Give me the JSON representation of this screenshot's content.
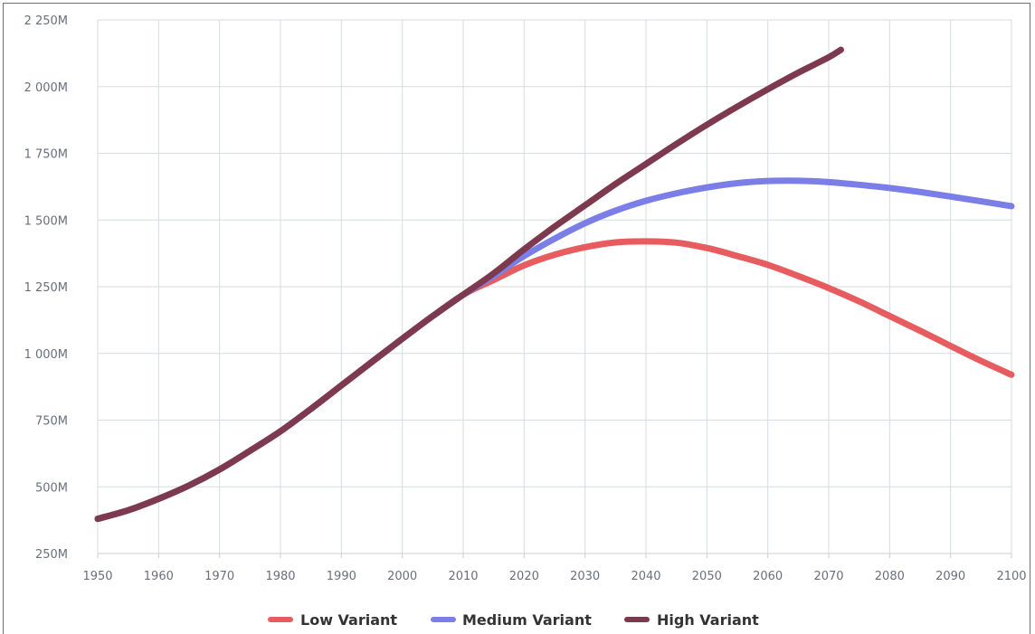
{
  "chart_data": {
    "type": "line",
    "title": "",
    "xlabel": "",
    "ylabel": "",
    "grid": true,
    "legend_position": "bottom",
    "x_ticks": [
      1950,
      1960,
      1970,
      1980,
      1990,
      2000,
      2010,
      2020,
      2030,
      2040,
      2050,
      2060,
      2070,
      2080,
      2090,
      2100
    ],
    "x_tick_labels": [
      "1950",
      "1960",
      "1970",
      "1980",
      "1990",
      "2000",
      "2010",
      "2020",
      "2030",
      "2040",
      "2050",
      "2060",
      "2070",
      "2080",
      "2090",
      "2100"
    ],
    "y_ticks": [
      250,
      500,
      750,
      1000,
      1250,
      1500,
      1750,
      2000,
      2250
    ],
    "y_tick_labels": [
      "250M",
      "500M",
      "750M",
      "1 000M",
      "1 250M",
      "1 500M",
      "1 750M",
      "2 000M",
      "2 250M"
    ],
    "xlim": [
      1950,
      2100
    ],
    "ylim": [
      250,
      2250
    ],
    "series": [
      {
        "name": "Low Variant",
        "color": "#e65c5f",
        "x": [
          1950,
          1955,
          1960,
          1965,
          1970,
          1975,
          1980,
          1985,
          1990,
          1995,
          2000,
          2005,
          2010,
          2015,
          2020,
          2025,
          2030,
          2035,
          2040,
          2045,
          2050,
          2055,
          2060,
          2065,
          2070,
          2075,
          2080,
          2085,
          2090,
          2095,
          2100
        ],
        "values": [
          380,
          412,
          455,
          505,
          565,
          635,
          708,
          792,
          880,
          968,
          1055,
          1140,
          1220,
          1275,
          1330,
          1370,
          1398,
          1416,
          1420,
          1415,
          1395,
          1365,
          1332,
          1290,
          1245,
          1195,
          1140,
          1085,
          1028,
          972,
          920
        ]
      },
      {
        "name": "Medium Variant",
        "color": "#7b7ee6",
        "x": [
          1950,
          1955,
          1960,
          1965,
          1970,
          1975,
          1980,
          1985,
          1990,
          1995,
          2000,
          2005,
          2010,
          2015,
          2020,
          2025,
          2030,
          2035,
          2040,
          2045,
          2050,
          2055,
          2060,
          2065,
          2070,
          2075,
          2080,
          2085,
          2090,
          2095,
          2100
        ],
        "values": [
          380,
          412,
          455,
          505,
          565,
          635,
          708,
          792,
          880,
          968,
          1055,
          1140,
          1220,
          1290,
          1365,
          1430,
          1488,
          1535,
          1572,
          1600,
          1622,
          1638,
          1646,
          1647,
          1642,
          1632,
          1620,
          1605,
          1588,
          1570,
          1552
        ]
      },
      {
        "name": "High Variant",
        "color": "#7d3a4f",
        "x": [
          1950,
          1955,
          1960,
          1965,
          1970,
          1975,
          1980,
          1985,
          1990,
          1995,
          2000,
          2005,
          2010,
          2015,
          2020,
          2025,
          2030,
          2035,
          2040,
          2045,
          2050,
          2055,
          2060,
          2065,
          2070,
          2072
        ],
        "values": [
          380,
          412,
          455,
          505,
          565,
          635,
          708,
          792,
          880,
          968,
          1055,
          1140,
          1220,
          1300,
          1390,
          1475,
          1555,
          1635,
          1710,
          1785,
          1857,
          1925,
          1990,
          2052,
          2110,
          2138
        ]
      }
    ]
  }
}
